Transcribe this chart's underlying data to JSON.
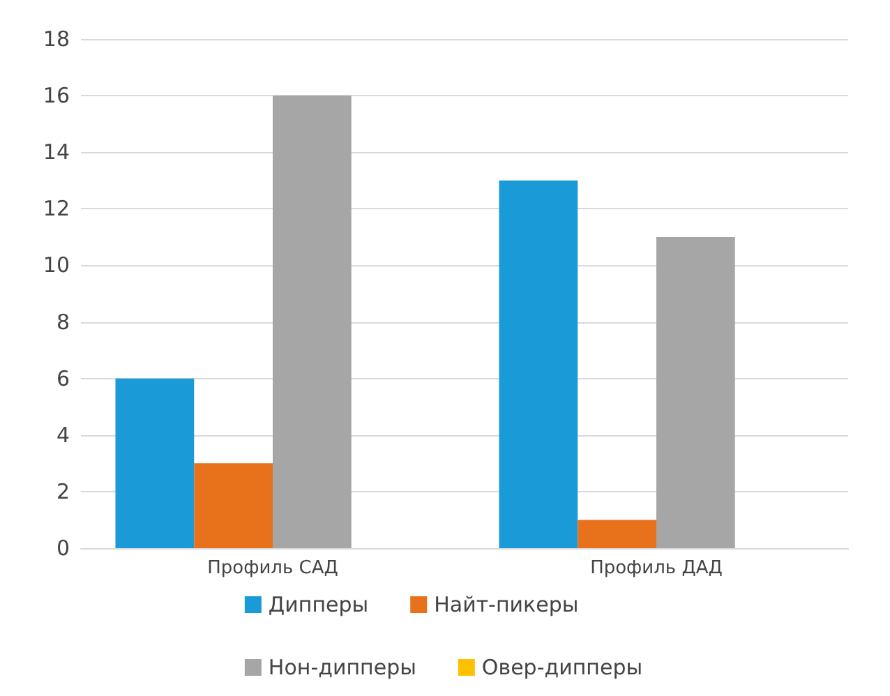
{
  "chart_data": {
    "type": "bar",
    "categories": [
      "Профиль САД",
      "Профиль ДАД"
    ],
    "series": [
      {
        "name": "Дипперы",
        "color": "#1b9ad8",
        "values": [
          6,
          13
        ]
      },
      {
        "name": "Найт-пикеры",
        "color": "#e8711c",
        "values": [
          3,
          1
        ]
      },
      {
        "name": "Нон-дипперы",
        "color": "#a6a6a6",
        "values": [
          16,
          11
        ]
      },
      {
        "name": "Овер-дипперы",
        "color": "#ffc000",
        "values": [
          0,
          0
        ]
      }
    ],
    "ylim": [
      0,
      18
    ],
    "yticks": [
      0,
      2,
      4,
      6,
      8,
      10,
      12,
      14,
      16,
      18
    ],
    "grid": "y",
    "legend": "bottom"
  }
}
